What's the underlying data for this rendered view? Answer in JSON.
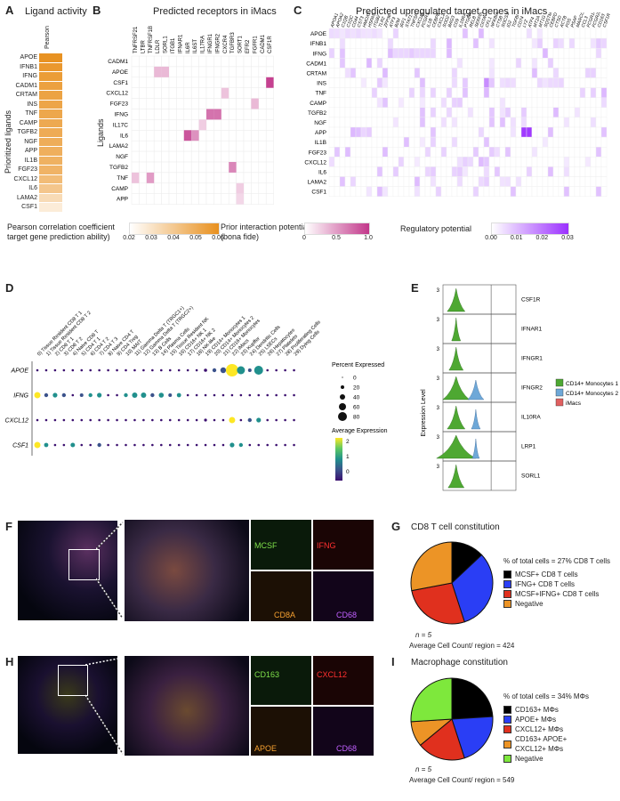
{
  "panels": {
    "A": {
      "label": "A",
      "title": "Ligand activity",
      "column": "Pearson",
      "ylabel": "Prioritized ligands",
      "ligands": [
        "APOE",
        "IFNB1",
        "IFNG",
        "CADM1",
        "CRTAM",
        "INS",
        "TNF",
        "CAMP",
        "TGFB2",
        "NGF",
        "APP",
        "IL1B",
        "FGF23",
        "CXCL12",
        "IL6",
        "LAMA2",
        "CSF1"
      ],
      "values": [
        0.065,
        0.062,
        0.06,
        0.058,
        0.057,
        0.056,
        0.055,
        0.054,
        0.053,
        0.052,
        0.051,
        0.05,
        0.049,
        0.045,
        0.04,
        0.03,
        0.022
      ],
      "legend_title": "Pearson correlation coefficient\ntarget gene prediction ability)",
      "legend_ticks": [
        "0.02",
        "0.03",
        "0.04",
        "0.05",
        "0.06"
      ],
      "color": "#e8901e"
    },
    "B": {
      "label": "B",
      "title": "Predicted receptors in iMacs",
      "ylabel": "Ligands",
      "receptors": [
        "TNFRSF21",
        "LTBR",
        "TNFRSF1B",
        "LDLR",
        "SORL1",
        "ITGB1",
        "IFNAR1",
        "IL6R",
        "IL6ST",
        "IL17RA",
        "IFNGR1",
        "IFNGR2",
        "CXCR4",
        "TGFBR3",
        "SORT1",
        "EFR2",
        "FGFR1",
        "CADM1",
        "CSF1R"
      ],
      "ligands": [
        "CADM1",
        "APOE",
        "CSF1",
        "CXCL12",
        "FGF23",
        "IFNG",
        "IL17C",
        "IL6",
        "LAMA2",
        "NGF",
        "TGFB2",
        "TNF",
        "CAMP",
        "APP"
      ],
      "legend_title": "Prior interaction potential\n(bona fide)",
      "legend_ticks": [
        "0",
        "0.5",
        "1.0"
      ],
      "color": "#c2378a"
    },
    "C": {
      "label": "C",
      "title": "Predicted upregulated target genes in iMacs",
      "genes": [
        "APOA1",
        "APOA2",
        "C1QB",
        "C1QC",
        "CD44",
        "CST3",
        "HMOX1",
        "HSPA5",
        "ITGB2",
        "TLR2",
        "ZFP36",
        "ATF3",
        "B2M",
        "IRF1",
        "STAT1",
        "TNFSF10",
        "CXCL10",
        "FCGR3A",
        "IL1B",
        "CEBPB",
        "CXCL2",
        "SOD2",
        "BAG3",
        "CD9",
        "IL10RA",
        "PTGER4",
        "RELB",
        "SERPINB2",
        "CIITA",
        "CFL1",
        "NFKBIA",
        "CTSB",
        "SOCS3",
        "ID2",
        "TGFBI",
        "CD74",
        "LYZ",
        "ATF4",
        "MT2A",
        "MT1G",
        "SQSTM1",
        "CEBPD",
        "CTSD",
        "ACTB",
        "FOS",
        "PSAP",
        "MARCO",
        "CCL3",
        "FCGR1A",
        "FCGR2B",
        "CD163",
        "CSF1R"
      ],
      "ligands": [
        "APOE",
        "IFNB1",
        "IFNG",
        "CADM1",
        "CRTAM",
        "INS",
        "TNF",
        "CAMP",
        "TGFB2",
        "NGF",
        "APP",
        "IL1B",
        "FGF23",
        "CXCL12",
        "IL6",
        "LAMA2",
        "CSF1"
      ],
      "legend_title": "Regulatory potential",
      "legend_ticks": [
        "0.00",
        "0.01",
        "0.02",
        "0.03"
      ],
      "color": "#9b30ff"
    },
    "D": {
      "label": "D",
      "clusters": [
        "0) Tissue Resident CD8 T 1",
        "1) Tissue Resident CD8 T 2",
        "2) CD8 T 1",
        "3) CD8 T 2",
        "4) Naive CD8 T",
        "5) CD4 T 1",
        "6) CD4 T 2",
        "7) CD4 T 3",
        "8) Naive CD4 T",
        "9) CD4 Treg",
        "10) MAIT",
        "11) Gamma Delta T (TRGC1+)",
        "12) Gamma Delta T (TRGC2+)",
        "13) B Cells",
        "14) Plasma Cells",
        "15) Tissue Resident NK",
        "16) CD16+ NK 1",
        "17) CD16+ NK 2",
        "18) NK-like",
        "19) CD14+ Monocytes 1",
        "20) CD14+ Monocytes 2",
        "21) CD16+ Monocytes",
        "22) iMacs",
        "23) Kupffer",
        "24) Dendritic Cells",
        "25) LSECs",
        "26) Hepatocytes",
        "27) Platelets",
        "28) Proliferating Cells",
        "29) Dying Cells"
      ],
      "genes": [
        "APOE",
        "IFNG",
        "CXCL12",
        "CSF1"
      ],
      "size_legend_title": "Percent Expressed",
      "size_ticks": [
        "0",
        "20",
        "40",
        "60",
        "80"
      ],
      "color_legend_title": "Average Expression",
      "color_ticks": [
        "2",
        "1",
        "0"
      ]
    },
    "E": {
      "label": "E",
      "ylabel": "Expression Level",
      "genes": [
        "CSF1R",
        "IFNAR1",
        "IFNGR1",
        "IFNGR2",
        "IL10RA",
        "LRP1",
        "SORL1"
      ],
      "ytick": "3",
      "legend": [
        {
          "name": "CD14+ Monocytes 1",
          "color": "#4ea832"
        },
        {
          "name": "CD14+ Monocytes 2",
          "color": "#6ea8d8"
        },
        {
          "name": "iMacs",
          "color": "#e06060"
        }
      ]
    },
    "F": {
      "label": "F",
      "markers": [
        "MCSF",
        "IFNG",
        "CD8A",
        "CD68"
      ],
      "marker_colors": [
        "#7fe04a",
        "#ff3030",
        "#f5a030",
        "#c060ff"
      ]
    },
    "G": {
      "label": "G",
      "title": "CD8 T cell constitution",
      "header": "% of total cells = 27% CD8 T cells",
      "legend": [
        {
          "name": "MCSF+ CD8 T cells",
          "color": "#000000"
        },
        {
          "name": "IFNG+ CD8 T cells",
          "color": "#2a3ef5"
        },
        {
          "name": "MCSF+IFNG+ CD8 T cells",
          "color": "#e0301e"
        },
        {
          "name": "Negative",
          "color": "#ec9426"
        }
      ],
      "slices": [
        0.13,
        0.32,
        0.27,
        0.28
      ],
      "n": "n = 5",
      "footer": "Average Cell Count/ region = 424"
    },
    "H": {
      "label": "H",
      "markers": [
        "CD163",
        "CXCL12",
        "APOE",
        "CD68"
      ],
      "marker_colors": [
        "#7fe04a",
        "#ff3030",
        "#f5a030",
        "#c060ff"
      ]
    },
    "I": {
      "label": "I",
      "title": "Macrophage constitution",
      "header": "% of total cells = 34% MΦs",
      "legend": [
        {
          "name": "CD163+ MΦs",
          "color": "#000000"
        },
        {
          "name": "APOE+ MΦs",
          "color": "#2a3ef5"
        },
        {
          "name": "CXCL12+ MΦs",
          "color": "#e0301e"
        },
        {
          "name": "CD163+ APOE+\nCXCL12+ MΦs",
          "color": "#ec9426"
        },
        {
          "name": "Negative",
          "color": "#7ee83c"
        }
      ],
      "slices": [
        0.24,
        0.21,
        0.19,
        0.1,
        0.26
      ],
      "n": "n = 5",
      "footer": "Average Cell Count/ region = 549"
    }
  }
}
